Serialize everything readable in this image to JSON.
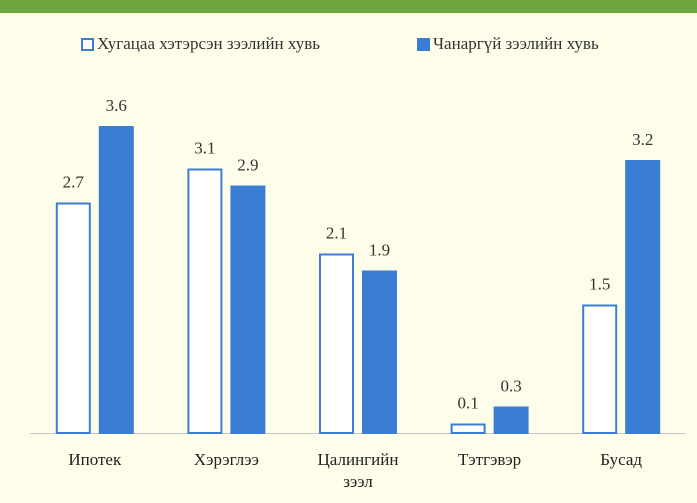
{
  "chart_data": {
    "type": "bar",
    "categories": [
      "Ипотек",
      "Хэрэглээ",
      "Цалингийн зээл",
      "Тэтгэвэр",
      "Бусад"
    ],
    "series": [
      {
        "name": "Хугацаа хэтэрсэн зээлийн хувь",
        "color": "#3c7dd4",
        "style": "outline",
        "values": [
          2.7,
          3.1,
          2.1,
          0.1,
          1.5
        ]
      },
      {
        "name": "Чанаргүй зээлийн хувь",
        "color": "#3c7dd4",
        "style": "filled",
        "values": [
          3.6,
          2.9,
          1.9,
          0.3,
          3.2
        ]
      }
    ],
    "ylim": [
      0,
      4
    ]
  }
}
